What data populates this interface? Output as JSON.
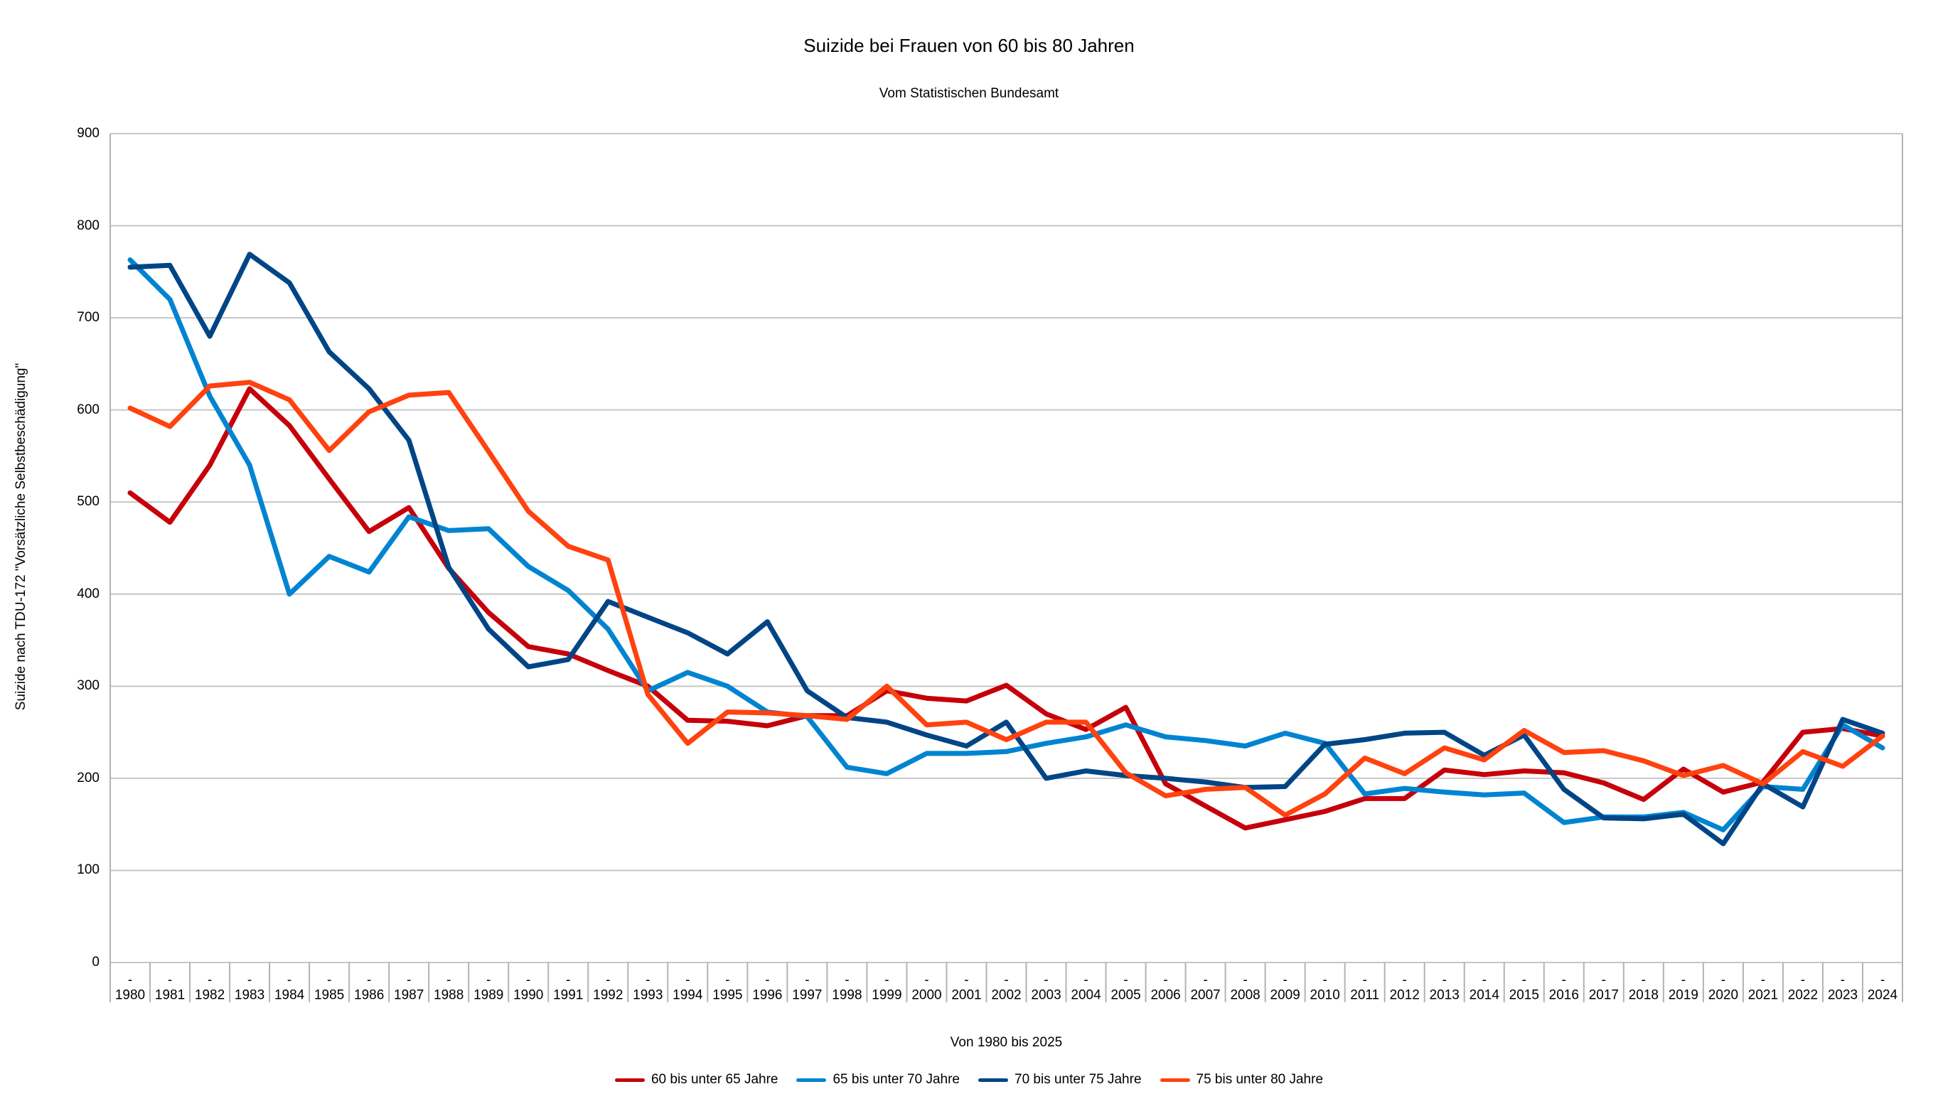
{
  "title": "Suizide bei Frauen von 60 bis 80 Jahren",
  "subtitle": "Vom Statistischen Bundesamt",
  "x_axis_title": "Von 1980 bis 2025",
  "y_axis_title": "Suizide nach TDU-172 \"Vorsätzliche Selbstbeschädigung\"",
  "colors": {
    "grid": "#c6c6c6",
    "axis": "#b3b3b3",
    "series_60_65": "#c5000b",
    "series_65_70": "#0084d1",
    "series_70_75": "#004586",
    "series_75_80": "#ff420e"
  },
  "chart_data": {
    "type": "line",
    "title": "Suizide bei Frauen von 60 bis 80 Jahren",
    "subtitle": "Vom Statistischen Bundesamt",
    "xlabel": "Von 1980 bis 2025",
    "ylabel": "Suizide nach TDU-172 \"Vorsätzliche Selbstbeschädigung\"",
    "ylim": [
      0,
      900
    ],
    "y_ticks": [
      0,
      100,
      200,
      300,
      400,
      500,
      600,
      700,
      800,
      900
    ],
    "grid": true,
    "legend_position": "bottom",
    "x": [
      1980,
      1981,
      1982,
      1983,
      1984,
      1985,
      1986,
      1987,
      1988,
      1989,
      1990,
      1991,
      1992,
      1993,
      1994,
      1995,
      1996,
      1997,
      1998,
      1999,
      2000,
      2001,
      2002,
      2003,
      2004,
      2005,
      2006,
      2007,
      2008,
      2009,
      2010,
      2011,
      2012,
      2013,
      2014,
      2015,
      2016,
      2017,
      2018,
      2019,
      2020,
      2021,
      2022,
      2023,
      2024
    ],
    "series": [
      {
        "name": "60 bis unter 65 Jahre",
        "color": "#c5000b",
        "values": [
          510,
          478,
          540,
          623,
          583,
          525,
          468,
          494,
          428,
          380,
          343,
          335,
          317,
          300,
          263,
          262,
          257,
          268,
          268,
          295,
          287,
          284,
          301,
          270,
          253,
          277,
          194,
          170,
          146,
          155,
          164,
          178,
          178,
          209,
          204,
          208,
          206,
          195,
          177,
          210,
          185,
          196,
          250,
          254,
          246
        ]
      },
      {
        "name": "65 bis unter 70 Jahre",
        "color": "#0084d1",
        "values": [
          763,
          720,
          615,
          540,
          400,
          441,
          424,
          484,
          469,
          471,
          430,
          404,
          362,
          295,
          315,
          300,
          272,
          267,
          212,
          205,
          227,
          227,
          229,
          238,
          245,
          258,
          245,
          241,
          235,
          249,
          238,
          183,
          189,
          185,
          182,
          184,
          152,
          158,
          158,
          163,
          144,
          191,
          188,
          258,
          233
        ]
      },
      {
        "name": "70 bis unter 75 Jahre",
        "color": "#004586",
        "values": [
          755,
          757,
          680,
          769,
          738,
          663,
          623,
          567,
          429,
          362,
          321,
          329,
          392,
          375,
          358,
          335,
          370,
          295,
          266,
          261,
          247,
          235,
          261,
          200,
          208,
          203,
          200,
          196,
          190,
          191,
          237,
          242,
          249,
          250,
          225,
          247,
          188,
          157,
          156,
          161,
          129,
          194,
          169,
          264,
          249
        ]
      },
      {
        "name": "75 bis unter 80 Jahre",
        "color": "#ff420e",
        "values": [
          602,
          582,
          626,
          630,
          611,
          556,
          598,
          616,
          619,
          555,
          490,
          452,
          437,
          291,
          238,
          272,
          271,
          268,
          264,
          300,
          258,
          261,
          242,
          261,
          261,
          206,
          181,
          188,
          190,
          160,
          183,
          222,
          205,
          233,
          220,
          252,
          228,
          230,
          219,
          203,
          214,
          194,
          229,
          213,
          246
        ]
      }
    ]
  }
}
